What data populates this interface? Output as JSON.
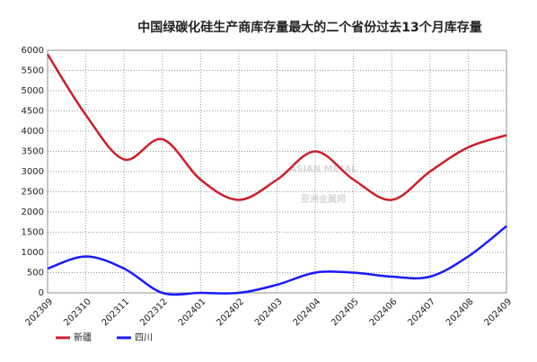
{
  "chart_data": {
    "type": "line",
    "title": "中国绿碳化硅生产商库存量最大的二个省份过去13个月库存量",
    "watermark": [
      "ASIAN METAL",
      "亚洲金属网"
    ],
    "categories": [
      "202309",
      "202310",
      "202311",
      "202312",
      "202401",
      "202402",
      "202403",
      "202404",
      "202405",
      "202406",
      "202407",
      "202408",
      "202409"
    ],
    "series": [
      {
        "name": "新疆",
        "color": "#cc1f2a",
        "values": [
          5900,
          4400,
          3300,
          3800,
          2800,
          2300,
          2800,
          3500,
          2800,
          2300,
          3000,
          3600,
          3900
        ]
      },
      {
        "name": "四川",
        "color": "#1a1aff",
        "values": [
          600,
          900,
          600,
          0,
          0,
          0,
          200,
          500,
          500,
          400,
          400,
          900,
          1650
        ]
      }
    ],
    "ylim": [
      0,
      6000
    ],
    "yticks": [
      0,
      500,
      1000,
      1500,
      2000,
      2500,
      3000,
      3500,
      4000,
      4500,
      5000,
      5500,
      6000
    ],
    "grid": true
  }
}
